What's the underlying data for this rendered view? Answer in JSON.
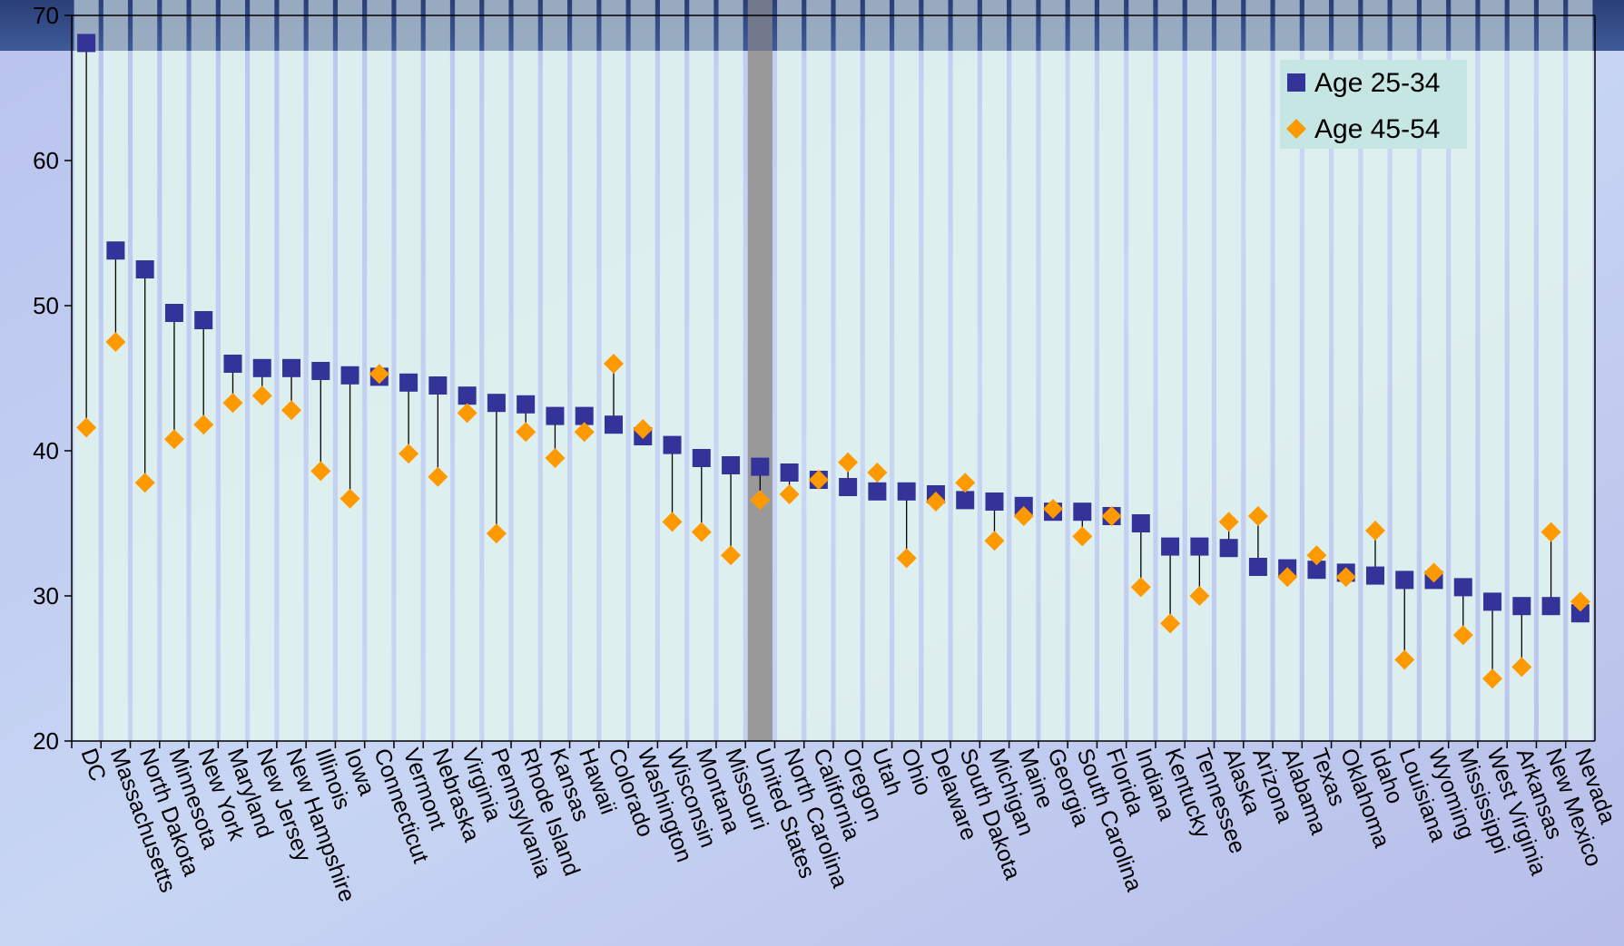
{
  "chart_data": {
    "type": "dot",
    "categories": [
      "DC",
      "Massachusetts",
      "North Dakota",
      "Minnesota",
      "New York",
      "Maryland",
      "New Jersey",
      "New Hampshire",
      "Illinois",
      "Iowa",
      "Connecticut",
      "Vermont",
      "Nebraska",
      "Virginia",
      "Pennsylvania",
      "Rhode Island",
      "Kansas",
      "Hawaii",
      "Colorado",
      "Washington",
      "Wisconsin",
      "Montana",
      "Missouri",
      "United States",
      "North Carolina",
      "California",
      "Oregon",
      "Utah",
      "Ohio",
      "Delaware",
      "South Dakota",
      "Michigan",
      "Maine",
      "Georgia",
      "South Carolina",
      "Florida",
      "Indiana",
      "Kentucky",
      "Tennessee",
      "Alaska",
      "Arizona",
      "Alabama",
      "Texas",
      "Oklahoma",
      "Idaho",
      "Louisiana",
      "Wyoming",
      "Mississippi",
      "West Virginia",
      "Arkansas",
      "New Mexico",
      "Nevada"
    ],
    "series": [
      {
        "name": "Age 25-34",
        "color": "#333399",
        "marker": "square",
        "values": [
          68.1,
          53.8,
          52.5,
          49.5,
          49.0,
          46.0,
          45.7,
          45.7,
          45.5,
          45.2,
          45.1,
          44.7,
          44.5,
          43.8,
          43.3,
          43.2,
          42.4,
          42.4,
          41.8,
          41.0,
          40.4,
          39.5,
          39.0,
          38.9,
          38.5,
          38.0,
          37.5,
          37.2,
          37.2,
          37.0,
          36.6,
          36.5,
          36.2,
          35.8,
          35.8,
          35.5,
          35.0,
          33.4,
          33.4,
          33.3,
          32.0,
          31.9,
          31.8,
          31.6,
          31.4,
          31.1,
          31.1,
          30.6,
          29.6,
          29.3,
          29.3,
          28.8
        ]
      },
      {
        "name": "Age 45-54",
        "color": "#ff9900",
        "marker": "diamond",
        "values": [
          41.6,
          47.5,
          37.8,
          40.8,
          41.8,
          43.3,
          43.8,
          42.8,
          38.6,
          36.7,
          45.3,
          39.8,
          38.2,
          42.6,
          34.3,
          41.3,
          39.5,
          41.3,
          46.0,
          41.5,
          35.1,
          34.4,
          32.8,
          36.6,
          37.0,
          38.0,
          39.2,
          38.5,
          32.6,
          36.5,
          37.8,
          33.8,
          35.5,
          36.0,
          34.1,
          35.5,
          30.6,
          28.1,
          30.0,
          35.1,
          35.5,
          31.3,
          32.8,
          31.3,
          34.5,
          25.6,
          31.6,
          27.3,
          24.3,
          25.1,
          34.4,
          29.6
        ]
      }
    ],
    "highlight": "United States",
    "ylim": [
      20,
      70
    ],
    "yticks": [
      20,
      30,
      40,
      50,
      60,
      70
    ],
    "legend": "top-right"
  }
}
